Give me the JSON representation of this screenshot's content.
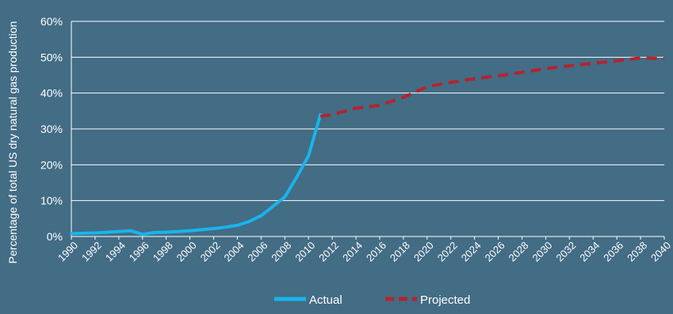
{
  "chart_data": {
    "type": "line",
    "title": "",
    "ylabel": "Percentage of total US dry natural gas production",
    "xlabel": "",
    "xlim": [
      1990,
      2040
    ],
    "ylim": [
      0,
      60
    ],
    "y_ticks": [
      0,
      10,
      20,
      30,
      40,
      50,
      60
    ],
    "y_tick_labels": [
      "0%",
      "10%",
      "20%",
      "30%",
      "40%",
      "50%",
      "60%"
    ],
    "x_ticks": [
      1990,
      1992,
      1994,
      1996,
      1998,
      2000,
      2002,
      2004,
      2006,
      2008,
      2010,
      2012,
      2014,
      2016,
      2018,
      2020,
      2022,
      2024,
      2026,
      2028,
      2030,
      2032,
      2034,
      2036,
      2038,
      2040
    ],
    "x_tick_labels": [
      "1990",
      "1992",
      "1994",
      "1996",
      "1998",
      "2000",
      "2002",
      "2004",
      "2006",
      "2008",
      "2010",
      "2012",
      "2014",
      "2016",
      "2018",
      "2020",
      "2022",
      "2024",
      "2026",
      "2028",
      "2030",
      "2032",
      "2034",
      "2036",
      "2038",
      "2040"
    ],
    "grid": "horizontal",
    "legend_position": "bottom-center",
    "series": [
      {
        "name": "Actual",
        "color": "#1ab4ec",
        "style": "solid",
        "x": [
          1990,
          1991,
          1992,
          1993,
          1994,
          1995,
          1996,
          1997,
          1998,
          1999,
          2000,
          2001,
          2002,
          2003,
          2004,
          2005,
          2006,
          2007,
          2008,
          2009,
          2010,
          2011
        ],
        "y": [
          0.8,
          0.9,
          1.0,
          1.2,
          1.4,
          1.6,
          0.6,
          1.1,
          1.2,
          1.4,
          1.6,
          1.9,
          2.2,
          2.6,
          3.1,
          4.2,
          5.8,
          8.4,
          11.0,
          16.5,
          22.5,
          34.0
        ]
      },
      {
        "name": "Projected",
        "color": "#b5232e",
        "style": "dashed",
        "x": [
          2011,
          2012,
          2014,
          2016,
          2018,
          2020,
          2022,
          2024,
          2026,
          2028,
          2030,
          2032,
          2034,
          2036,
          2038,
          2040
        ],
        "y": [
          33.5,
          34.0,
          35.8,
          36.6,
          38.8,
          41.8,
          43.0,
          44.0,
          44.8,
          45.8,
          46.8,
          47.6,
          48.3,
          49.0,
          49.8,
          49.6
        ]
      }
    ]
  },
  "colors": {
    "background": "#436c85",
    "gridline": "#ffffff",
    "text": "#ffffff"
  }
}
